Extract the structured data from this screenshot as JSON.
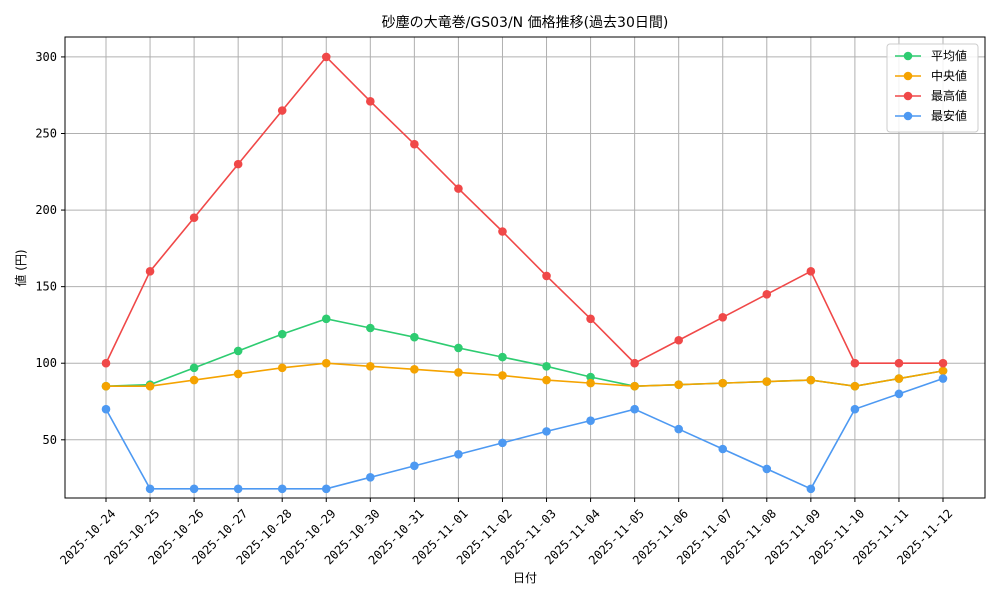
{
  "chart_data": {
    "type": "line",
    "title": "砂塵の大竜巻/GS03/N 価格推移(過去30日間)",
    "xlabel": "日付",
    "ylabel": "値 (円)",
    "categories": [
      "2025-10-24",
      "2025-10-25",
      "2025-10-26",
      "2025-10-27",
      "2025-10-28",
      "2025-10-29",
      "2025-10-30",
      "2025-10-31",
      "2025-11-01",
      "2025-11-02",
      "2025-11-03",
      "2025-11-04",
      "2025-11-05",
      "2025-11-06",
      "2025-11-07",
      "2025-11-08",
      "2025-11-09",
      "2025-11-10",
      "2025-11-11",
      "2025-11-12"
    ],
    "ylim": [
      12,
      313
    ],
    "yticks": [
      50,
      100,
      150,
      200,
      250,
      300
    ],
    "grid": true,
    "legend_position": "top-right",
    "series": [
      {
        "name": "平均値",
        "color": "#2ecc71",
        "values": [
          85,
          86,
          97,
          108,
          119,
          129,
          123,
          117,
          110,
          104,
          98,
          91,
          85,
          86,
          87,
          88,
          89,
          85,
          90,
          95
        ]
      },
      {
        "name": "中央値",
        "color": "#f5a300",
        "values": [
          85,
          85,
          89,
          93,
          97,
          100,
          98,
          96,
          94,
          92,
          89,
          87,
          85,
          86,
          87,
          88,
          89,
          85,
          90,
          95
        ]
      },
      {
        "name": "最高値",
        "color": "#f04848",
        "values": [
          100,
          160,
          195,
          230,
          265,
          300,
          271,
          243,
          214,
          186,
          157,
          129,
          100,
          115,
          130,
          145,
          160,
          100,
          100,
          100
        ]
      },
      {
        "name": "最安値",
        "color": "#4d99f2",
        "values": [
          70,
          18,
          18,
          18,
          18,
          18,
          25.5,
          33,
          40.5,
          48,
          55.5,
          62.5,
          70,
          57,
          44,
          31,
          18,
          70,
          80,
          90
        ]
      }
    ]
  }
}
